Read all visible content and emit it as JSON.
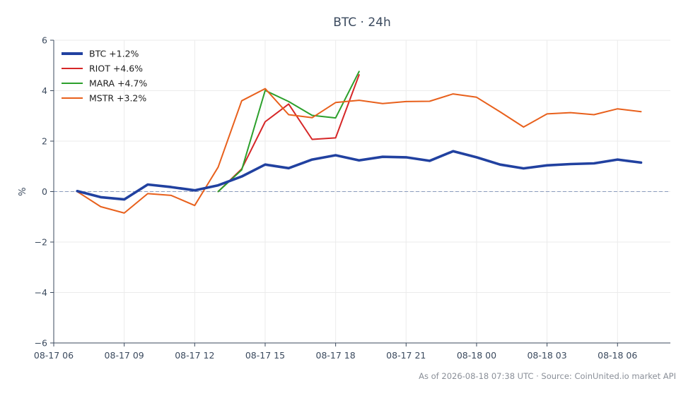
{
  "chart_data": {
    "type": "line",
    "title": "BTC · 24h",
    "xlabel": "",
    "ylabel": "%",
    "ylim": [
      -6,
      6
    ],
    "yticks": [
      -6,
      -4,
      -2,
      0,
      2,
      4,
      6
    ],
    "ytick_labels": [
      "−6",
      "−4",
      "−2",
      "0",
      "2",
      "4",
      "6"
    ],
    "x_range": [
      "2026-08-17 06:00",
      "2026-08-18 08:15"
    ],
    "xticks": [
      "2026-08-17 06:00",
      "2026-08-17 09:00",
      "2026-08-17 12:00",
      "2026-08-17 15:00",
      "2026-08-17 18:00",
      "2026-08-17 21:00",
      "2026-08-18 00:00",
      "2026-08-18 03:00",
      "2026-08-18 06:00"
    ],
    "xtick_labels": [
      "08-17 06",
      "08-17 09",
      "08-17 12",
      "08-17 15",
      "08-17 18",
      "08-17 21",
      "08-18 00",
      "08-18 03",
      "08-18 06"
    ],
    "grid": true,
    "zero_line": true,
    "legend_position": "top-left",
    "series": [
      {
        "name": "BTC +1.2%",
        "color": "#2141a0",
        "line_weight": "thick",
        "x": [
          "2026-08-17 07:00",
          "2026-08-17 08:00",
          "2026-08-17 09:00",
          "2026-08-17 10:00",
          "2026-08-17 11:00",
          "2026-08-17 12:00",
          "2026-08-17 13:00",
          "2026-08-17 14:00",
          "2026-08-17 15:00",
          "2026-08-17 16:00",
          "2026-08-17 17:00",
          "2026-08-17 18:00",
          "2026-08-17 19:00",
          "2026-08-17 20:00",
          "2026-08-17 21:00",
          "2026-08-17 22:00",
          "2026-08-17 23:00",
          "2026-08-18 00:00",
          "2026-08-18 01:00",
          "2026-08-18 02:00",
          "2026-08-18 03:00",
          "2026-08-18 04:00",
          "2026-08-18 05:00",
          "2026-08-18 06:00",
          "2026-08-18 07:00"
        ],
        "values": [
          0.02,
          -0.22,
          -0.31,
          0.28,
          0.18,
          0.05,
          0.25,
          0.6,
          1.07,
          0.93,
          1.27,
          1.44,
          1.24,
          1.38,
          1.36,
          1.22,
          1.6,
          1.36,
          1.07,
          0.92,
          1.04,
          1.09,
          1.12,
          1.27,
          1.15
        ]
      },
      {
        "name": "RIOT +4.6%",
        "color": "#d62728",
        "line_weight": "normal",
        "x": [
          "2026-08-17 13:00",
          "2026-08-17 14:00",
          "2026-08-17 15:00",
          "2026-08-17 16:00",
          "2026-08-17 17:00",
          "2026-08-17 18:00",
          "2026-08-17 19:00"
        ],
        "values": [
          0.0,
          0.9,
          2.77,
          3.47,
          2.07,
          2.13,
          4.63
        ]
      },
      {
        "name": "MARA +4.7%",
        "color": "#2ca02c",
        "line_weight": "normal",
        "x": [
          "2026-08-17 13:00",
          "2026-08-17 14:00",
          "2026-08-17 15:00",
          "2026-08-17 16:00",
          "2026-08-17 17:00",
          "2026-08-17 18:00",
          "2026-08-17 19:00"
        ],
        "values": [
          0.0,
          0.86,
          4.01,
          3.57,
          3.02,
          2.92,
          4.76
        ]
      },
      {
        "name": "MSTR +3.2%",
        "color": "#e8601c",
        "line_weight": "normal",
        "x": [
          "2026-08-17 07:00",
          "2026-08-17 08:00",
          "2026-08-17 09:00",
          "2026-08-17 10:00",
          "2026-08-17 11:00",
          "2026-08-17 12:00",
          "2026-08-17 13:00",
          "2026-08-17 14:00",
          "2026-08-17 15:00",
          "2026-08-17 16:00",
          "2026-08-17 17:00",
          "2026-08-17 18:00",
          "2026-08-17 19:00",
          "2026-08-17 20:00",
          "2026-08-17 21:00",
          "2026-08-17 22:00",
          "2026-08-17 23:00",
          "2026-08-18 00:00",
          "2026-08-18 01:00",
          "2026-08-18 02:00",
          "2026-08-18 03:00",
          "2026-08-18 04:00",
          "2026-08-18 05:00",
          "2026-08-18 06:00",
          "2026-08-18 07:00"
        ],
        "values": [
          0.0,
          -0.6,
          -0.85,
          -0.08,
          -0.15,
          -0.55,
          0.97,
          3.6,
          4.08,
          3.05,
          2.93,
          3.53,
          3.62,
          3.49,
          3.57,
          3.58,
          3.87,
          3.74,
          3.16,
          2.56,
          3.08,
          3.13,
          3.05,
          3.28,
          3.17
        ]
      }
    ],
    "footer": "As of 2026-08-18 07:38 UTC · Source: CoinUnited.io market API"
  },
  "colors": {
    "axis": "#3b4a5e",
    "grid": "#ebebeb",
    "zero_line": "#8a9bbd",
    "footer": "#8a8f98"
  }
}
